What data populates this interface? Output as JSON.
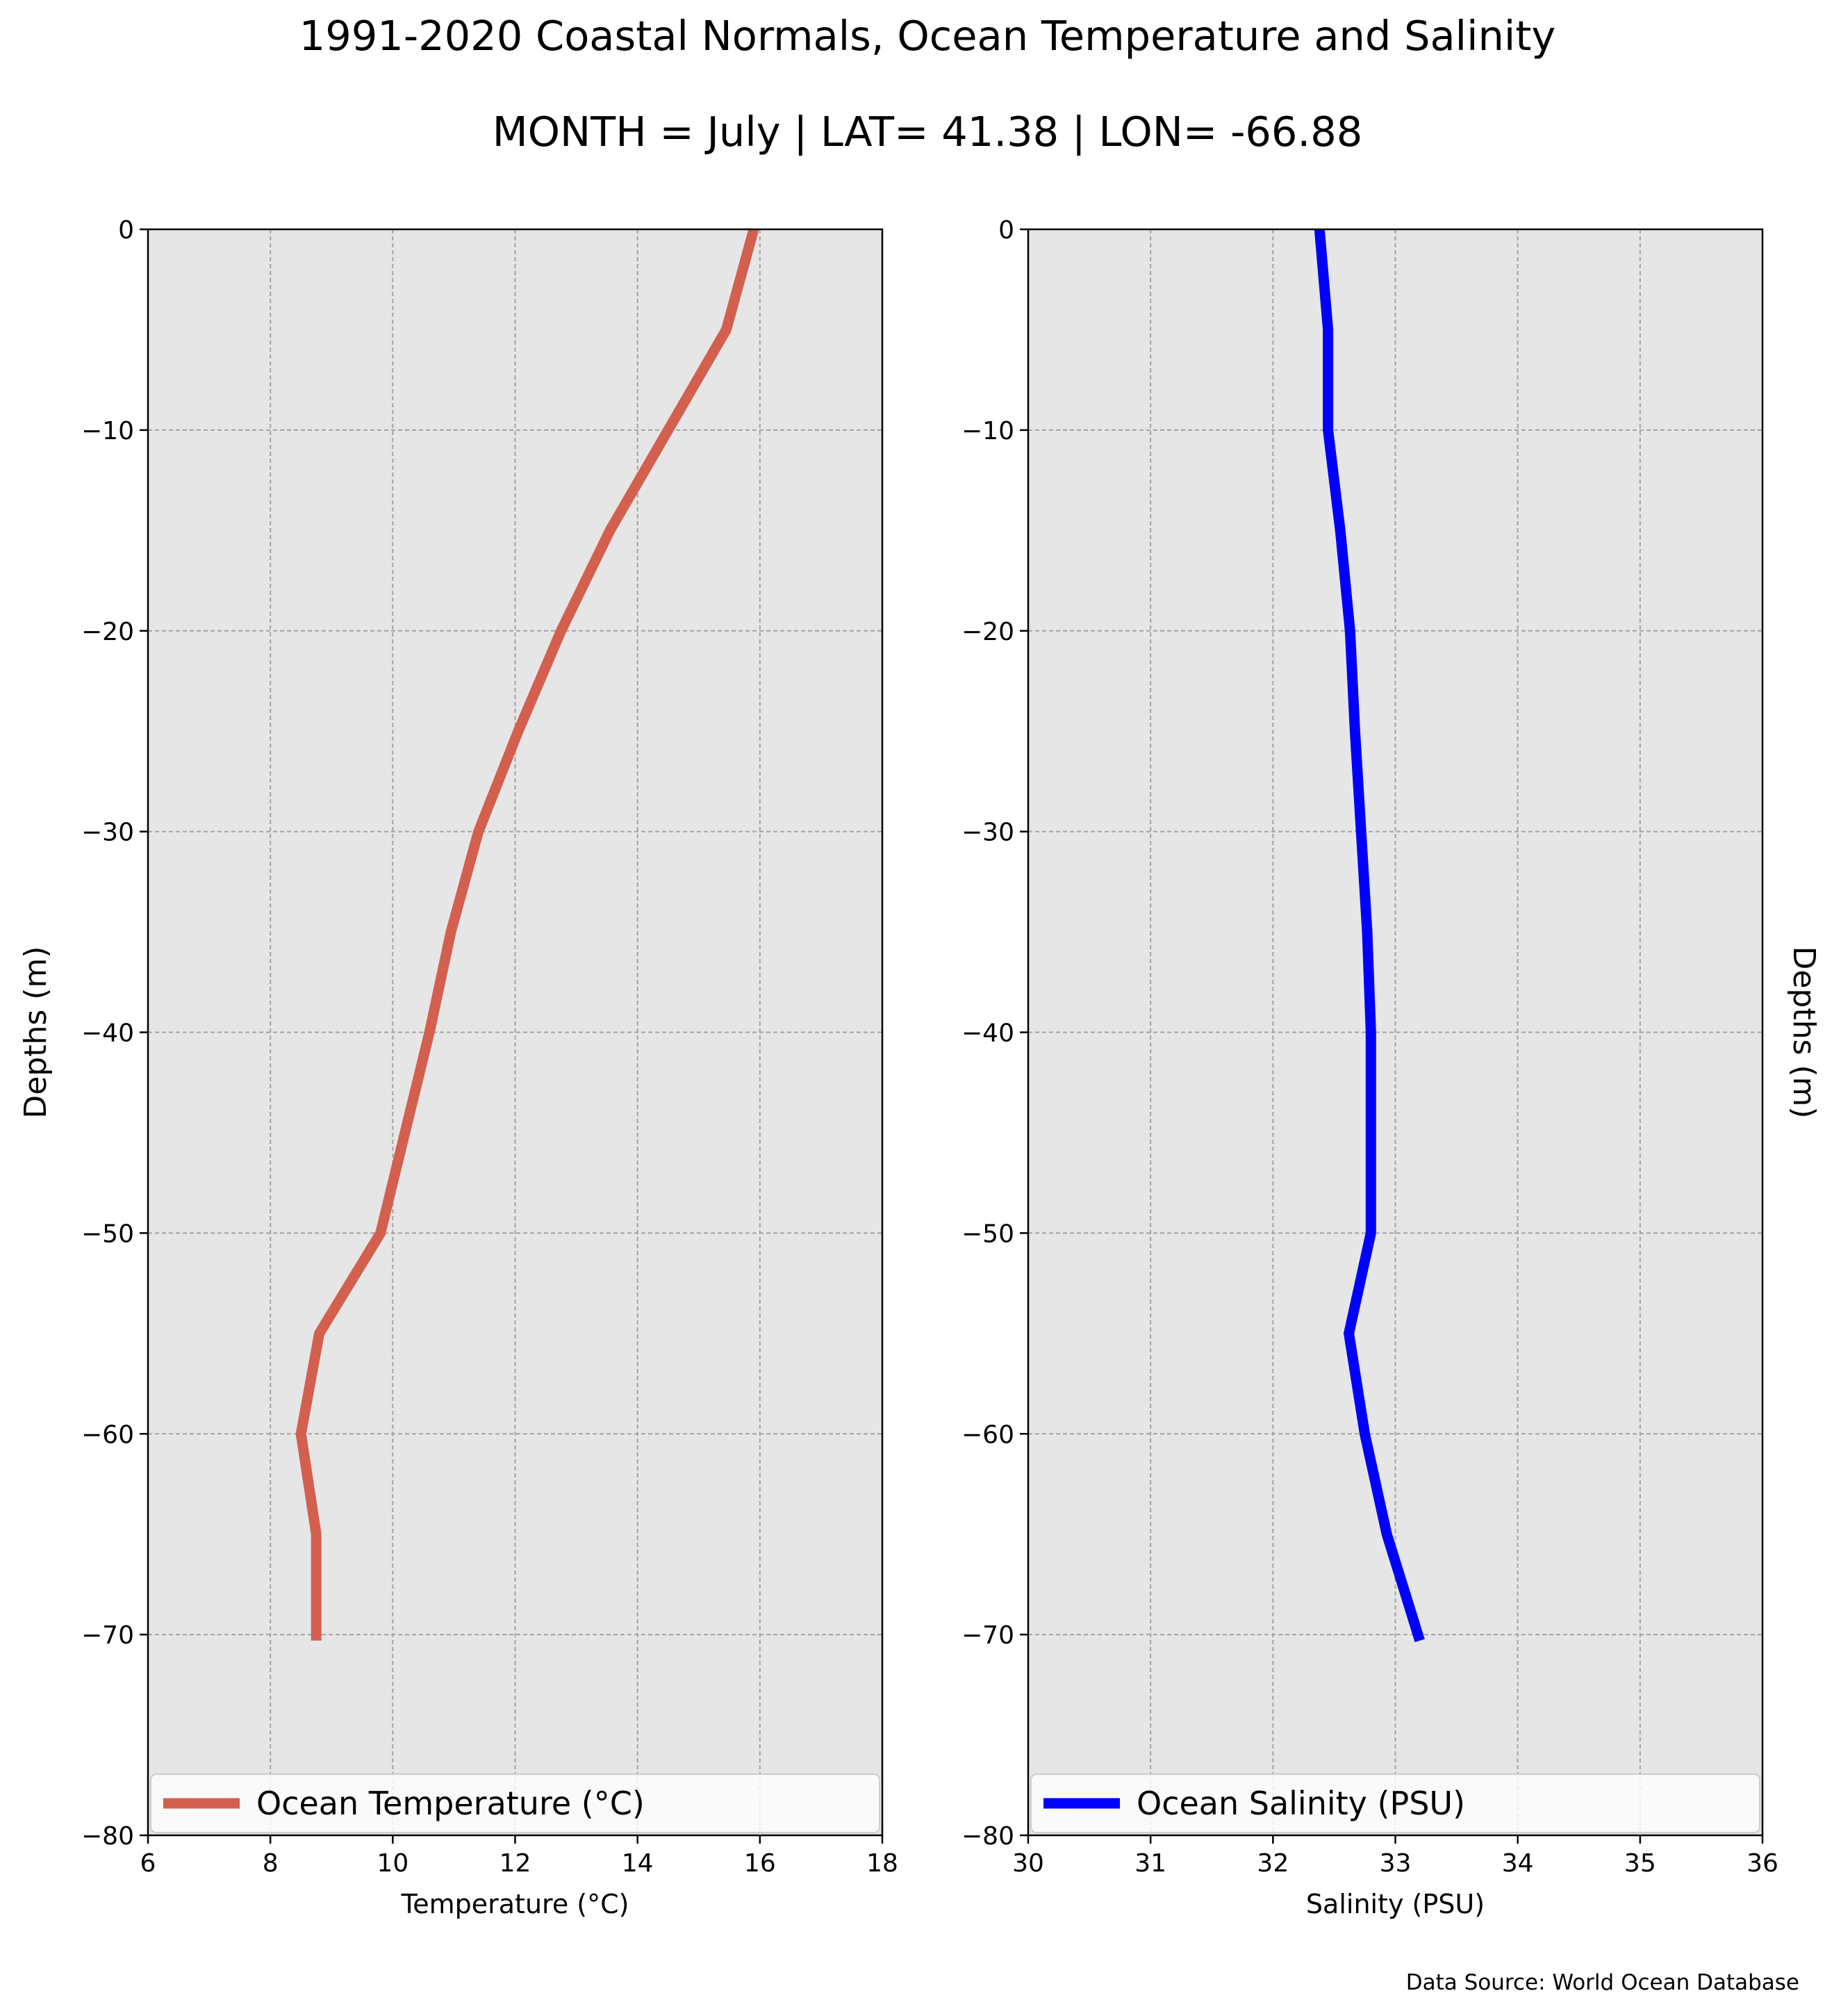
{
  "figure": {
    "title": "1991-2020 Coastal Normals, Ocean Temperature and Salinity",
    "subtitle": "MONTH = July | LAT= 41.38 | LON= -66.88",
    "source": "Data Source: World Ocean Database"
  },
  "chart_data": [
    {
      "type": "line",
      "orientation": "depth-profile",
      "xlabel": "Temperature ($^\\circ$C)",
      "xlabel_display": "Temperature (°C)",
      "ylabel": "Depths (m)",
      "xlim": [
        6,
        18
      ],
      "ylim": [
        -80,
        0
      ],
      "xticks": [
        6,
        8,
        10,
        12,
        14,
        16,
        18
      ],
      "yticks": [
        0,
        -10,
        -20,
        -30,
        -40,
        -50,
        -60,
        -70,
        -80
      ],
      "grid": true,
      "legend": "bottom",
      "series": [
        {
          "name": "Ocean Temperature (°C)",
          "color": "#d35f4e",
          "x": [
            15.9,
            15.45,
            14.5,
            13.55,
            12.75,
            12.05,
            11.4,
            10.95,
            10.6,
            10.2,
            9.8,
            8.8,
            8.5,
            8.75,
            8.75
          ],
          "y": [
            0,
            -5,
            -10,
            -15,
            -20,
            -25,
            -30,
            -35,
            -40,
            -45,
            -50,
            -55,
            -60,
            -65,
            -70.3
          ]
        }
      ]
    },
    {
      "type": "line",
      "orientation": "depth-profile",
      "xlabel": "Salinity (PSU)",
      "ylabel": "Depths (m)",
      "xlim": [
        30,
        36
      ],
      "ylim": [
        -80,
        0
      ],
      "xticks": [
        30,
        31,
        32,
        33,
        34,
        35,
        36
      ],
      "yticks": [
        0,
        -10,
        -20,
        -30,
        -40,
        -50,
        -60,
        -70,
        -80
      ],
      "grid": true,
      "legend": "bottom",
      "series": [
        {
          "name": "Ocean Salinity (PSU)",
          "color": "#0000ff",
          "x": [
            32.38,
            32.45,
            32.45,
            32.55,
            32.63,
            32.67,
            32.72,
            32.77,
            32.8,
            32.8,
            32.8,
            32.62,
            32.75,
            32.93,
            33.2
          ],
          "y": [
            0,
            -5,
            -10,
            -15,
            -20,
            -25,
            -30,
            -35,
            -40,
            -45,
            -50,
            -55,
            -60,
            -65,
            -70.3
          ]
        }
      ]
    }
  ]
}
